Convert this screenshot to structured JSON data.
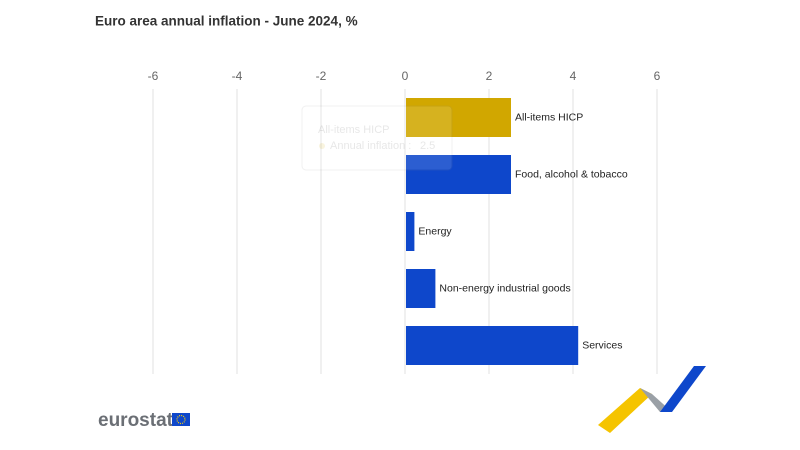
{
  "chart_data": {
    "type": "hbar",
    "title": "Euro area annual inflation - June 2024, %",
    "categories": [
      "All-items HICP",
      "Food, alcohol & tobacco",
      "Energy",
      "Non-energy industrial goods",
      "Services"
    ],
    "values": [
      2.5,
      2.5,
      0.2,
      0.7,
      4.1
    ],
    "colors": [
      "#d1a700",
      "#0e47cb",
      "#0e47cb",
      "#0e47cb",
      "#0e47cb"
    ],
    "xlim": [
      -6,
      6
    ],
    "xticks": [
      -6,
      -4,
      -2,
      0,
      2,
      4,
      6
    ],
    "grid": true,
    "tooltip": {
      "title": "All-items HICP",
      "label": "Annual inflation :",
      "value": 2.5
    }
  },
  "logo": "eurostat"
}
